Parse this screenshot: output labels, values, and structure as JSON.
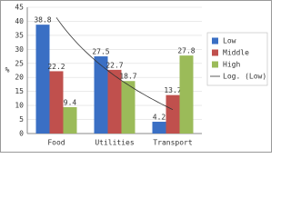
{
  "chart_data": {
    "type": "bar",
    "y_label": "%",
    "categories": [
      "Food",
      "Utilities",
      "Transport"
    ],
    "series": [
      {
        "name": "Low",
        "color": "#3a6fc4",
        "values": [
          38.8,
          27.5,
          4.2
        ],
        "trendline": "Log. (Low)"
      },
      {
        "name": "Middle",
        "color": "#c0504d",
        "values": [
          22.2,
          22.7,
          13.7
        ]
      },
      {
        "name": "High",
        "color": "#9bbb59",
        "values": [
          9.4,
          18.7,
          27.8
        ]
      }
    ],
    "ylim": [
      0,
      45
    ],
    "yticks": [
      0,
      5,
      10,
      15,
      20,
      25,
      30,
      35,
      40,
      45
    ],
    "legend": "right"
  }
}
